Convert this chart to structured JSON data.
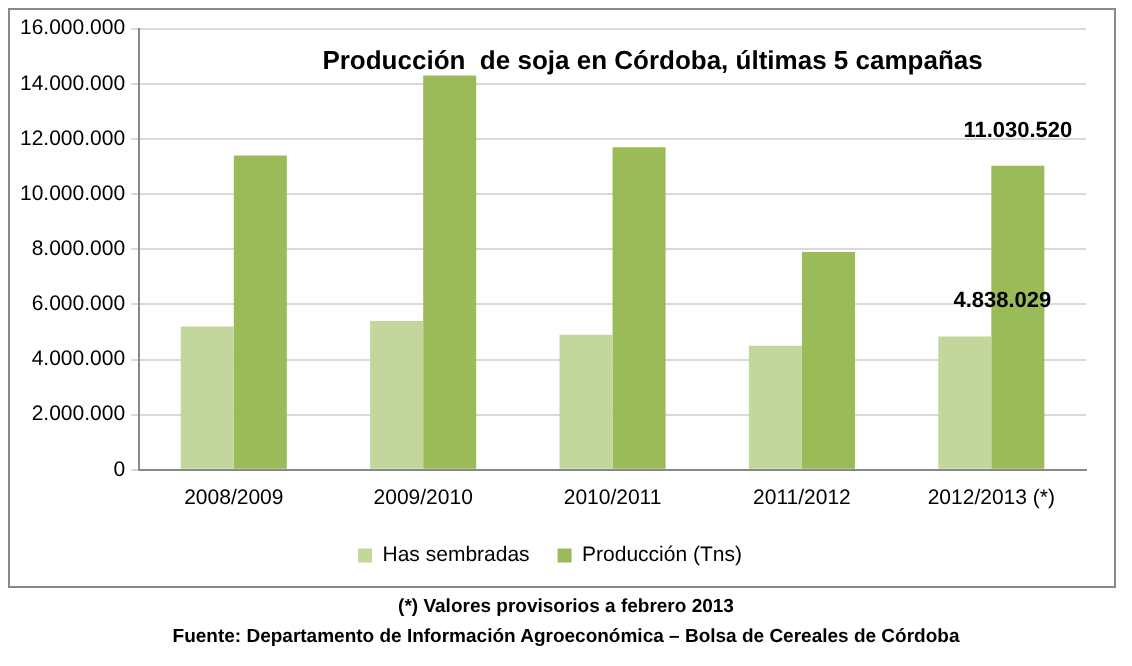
{
  "chart_data": {
    "type": "bar",
    "title": "Producción  de soja en Córdoba, últimas 5 campañas",
    "categories": [
      "2008/2009",
      "2009/2010",
      "2010/2011",
      "2011/2012",
      "2012/2013 (*)"
    ],
    "series": [
      {
        "name": "Has sembradas",
        "color": "#c3d69b",
        "values": [
          5200000,
          5400000,
          4900000,
          4500000,
          4838029
        ],
        "value_labels": [
          null,
          null,
          null,
          null,
          "4.838.029"
        ]
      },
      {
        "name": "Producción (Tns)",
        "color": "#9bbb59",
        "values": [
          11400000,
          14300000,
          11700000,
          7900000,
          11030520
        ],
        "value_labels": [
          null,
          null,
          null,
          null,
          "11.030.520"
        ]
      }
    ],
    "ylim": [
      0,
      16000000
    ],
    "yticks": [
      0,
      {
        "value": 2000000,
        "label": "2.000.000"
      },
      {
        "value": 4000000,
        "label": "4.000.000"
      },
      {
        "value": 6000000,
        "label": "6.000.000"
      },
      {
        "value": 8000000,
        "label": "8.000.000"
      },
      {
        "value": 10000000,
        "label": "10.000.000"
      },
      {
        "value": 12000000,
        "label": "12.000.000"
      },
      {
        "value": 14000000,
        "label": "14.000.000"
      },
      {
        "value": 16000000,
        "label": "16.000.000"
      }
    ],
    "grid": "y",
    "legend": "bottom",
    "annotations": [
      "(*) Valores provisorios a febrero 2013",
      "Fuente: Departamento de Información Agroeconómica – Bolsa de Cereales de Córdoba"
    ]
  }
}
